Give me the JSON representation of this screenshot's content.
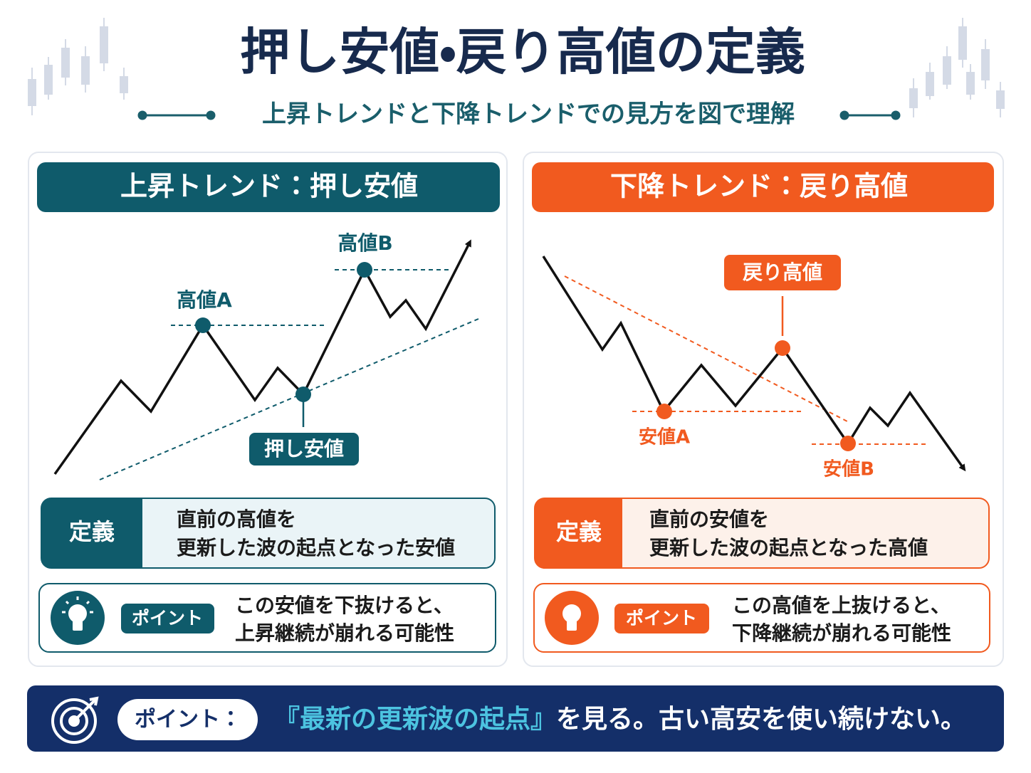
{
  "title": "押し安値・戻り高値の定義",
  "subtitle": "上昇トレンドと下降トレンドでの見方を図で理解",
  "panels": [
    {
      "header": "上昇トレンド：押し安値",
      "labels": [
        "高値A",
        "高値B",
        "押し安値"
      ],
      "definition": {
        "label": "定義",
        "lines": [
          "直前の高値を",
          "更新した波の起点となった安値"
        ]
      },
      "point": {
        "label": "ポイント",
        "lines": [
          "この安値を下抜けると、",
          "上昇継続が崩れる可能性"
        ]
      }
    },
    {
      "header": "下降トレンド：戻り高値",
      "labels": [
        "戻り高値",
        "安値A",
        "安値B"
      ],
      "definition": {
        "label": "定義",
        "lines": [
          "直前の安値を",
          "更新した波の起点となった高値"
        ]
      },
      "point": {
        "label": "ポイント",
        "lines": [
          "この高値を上抜けると、",
          "下降継続が崩れる可能性"
        ]
      }
    }
  ],
  "footer": {
    "label": "ポイント：",
    "highlight": "『最新の更新波の起点』",
    "text": "を見る。古い高安を使い続けない。"
  }
}
